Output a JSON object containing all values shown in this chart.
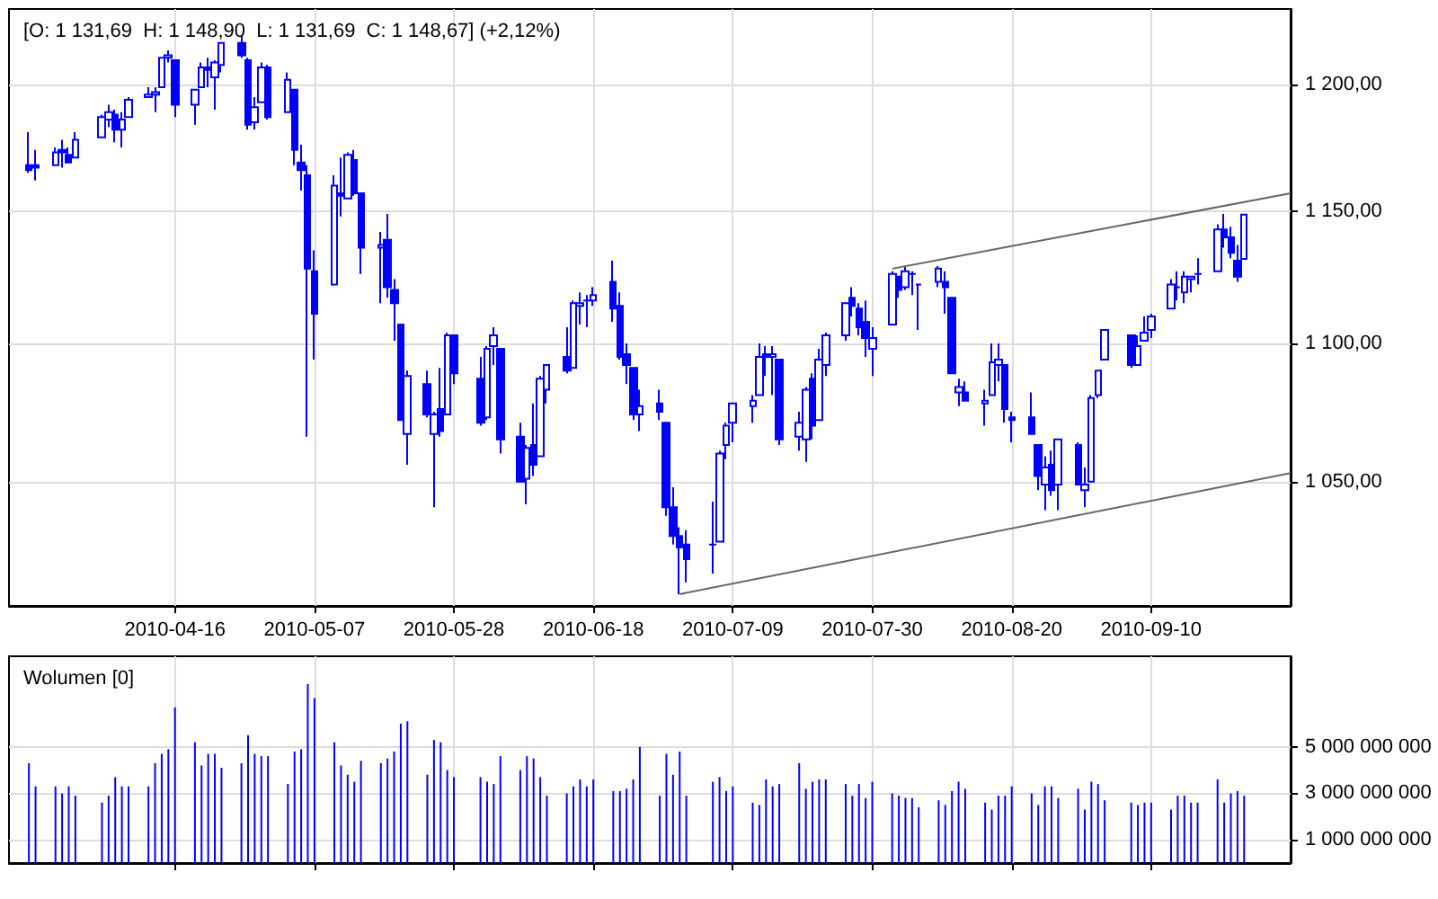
{
  "chart_data": [
    {
      "type": "candlestick",
      "title": "[O: 1 131,69  H: 1 148,90  L: 1 131,69  C: 1 148,67] (+2,12%)",
      "xlim": [
        "2010-03-22",
        "2010-10-01"
      ],
      "xticks": [
        "2010-04-16",
        "2010-05-07",
        "2010-05-28",
        "2010-06-18",
        "2010-07-09",
        "2010-07-30",
        "2010-08-20",
        "2010-09-10"
      ],
      "ylim": [
        1007,
        1231
      ],
      "yticks": [
        {
          "value": 1050,
          "label": "1 050,00"
        },
        {
          "value": 1100,
          "label": "1 100,00"
        },
        {
          "value": 1150,
          "label": "1 150,00"
        },
        {
          "value": 1200,
          "label": "1 200,00"
        }
      ],
      "log": "y",
      "grid": true,
      "series": [
        {
          "color": "#0000ff",
          "x": [
            "2010-03-25",
            "2010-03-26",
            "2010-03-29",
            "2010-03-30",
            "2010-03-31",
            "2010-04-01",
            "2010-04-05",
            "2010-04-06",
            "2010-04-07",
            "2010-04-08",
            "2010-04-09",
            "2010-04-12",
            "2010-04-13",
            "2010-04-14",
            "2010-04-15",
            "2010-04-16",
            "2010-04-19",
            "2010-04-20",
            "2010-04-21",
            "2010-04-22",
            "2010-04-23",
            "2010-04-26",
            "2010-04-27",
            "2010-04-28",
            "2010-04-29",
            "2010-04-30",
            "2010-05-03",
            "2010-05-04",
            "2010-05-05",
            "2010-05-06",
            "2010-05-07",
            "2010-05-10",
            "2010-05-11",
            "2010-05-12",
            "2010-05-13",
            "2010-05-14",
            "2010-05-17",
            "2010-05-18",
            "2010-05-19",
            "2010-05-20",
            "2010-05-21",
            "2010-05-24",
            "2010-05-25",
            "2010-05-26",
            "2010-05-27",
            "2010-05-28",
            "2010-06-01",
            "2010-06-02",
            "2010-06-03",
            "2010-06-04",
            "2010-06-07",
            "2010-06-08",
            "2010-06-09",
            "2010-06-10",
            "2010-06-11",
            "2010-06-14",
            "2010-06-15",
            "2010-06-16",
            "2010-06-17",
            "2010-06-18",
            "2010-06-21",
            "2010-06-22",
            "2010-06-23",
            "2010-06-24",
            "2010-06-25",
            "2010-06-28",
            "2010-06-29",
            "2010-06-30",
            "2010-07-01",
            "2010-07-02",
            "2010-07-06",
            "2010-07-07",
            "2010-07-08",
            "2010-07-09",
            "2010-07-12",
            "2010-07-13",
            "2010-07-14",
            "2010-07-15",
            "2010-07-16",
            "2010-07-19",
            "2010-07-20",
            "2010-07-21",
            "2010-07-22",
            "2010-07-23",
            "2010-07-26",
            "2010-07-27",
            "2010-07-28",
            "2010-07-29",
            "2010-07-30",
            "2010-08-02",
            "2010-08-03",
            "2010-08-04",
            "2010-08-05",
            "2010-08-06",
            "2010-08-09",
            "2010-08-10",
            "2010-08-11",
            "2010-08-12",
            "2010-08-13",
            "2010-08-16",
            "2010-08-17",
            "2010-08-18",
            "2010-08-19",
            "2010-08-20",
            "2010-08-23",
            "2010-08-24",
            "2010-08-25",
            "2010-08-26",
            "2010-08-27",
            "2010-08-30",
            "2010-08-31",
            "2010-09-01",
            "2010-09-02",
            "2010-09-03",
            "2010-09-07",
            "2010-09-08",
            "2010-09-09",
            "2010-09-10",
            "2010-09-13",
            "2010-09-14",
            "2010-09-15",
            "2010-09-16",
            "2010-09-17",
            "2010-09-20",
            "2010-09-21",
            "2010-09-22",
            "2010-09-23",
            "2010-09-24"
          ],
          "ohlc": [
            [
              1168,
              1181,
              1165,
              1166
            ],
            [
              1168,
              1174,
              1162,
              1167
            ],
            [
              1168,
              1175,
              1168,
              1173
            ],
            [
              1174,
              1178,
              1167,
              1173
            ],
            [
              1172,
              1175,
              1169,
              1169
            ],
            [
              1171,
              1181,
              1171,
              1178
            ],
            [
              1179,
              1188,
              1179,
              1187
            ],
            [
              1186,
              1192,
              1183,
              1189
            ],
            [
              1188,
              1190,
              1177,
              1182
            ],
            [
              1182,
              1189,
              1175,
              1186
            ],
            [
              1187,
              1195,
              1187,
              1194
            ],
            [
              1195,
              1199,
              1195,
              1196
            ],
            [
              1196,
              1199,
              1189,
              1197
            ],
            [
              1199,
              1211,
              1199,
              1211
            ],
            [
              1211,
              1214,
              1209,
              1212
            ],
            [
              1210,
              1210,
              1187,
              1192
            ],
            [
              1192,
              1198,
              1184,
              1198
            ],
            [
              1199,
              1209,
              1199,
              1207
            ],
            [
              1207,
              1211,
              1199,
              1206
            ],
            [
              1203,
              1210,
              1190,
              1209
            ],
            [
              1208,
              1217,
              1205,
              1217
            ],
            [
              1217,
              1220,
              1211,
              1212
            ],
            [
              1210,
              1211,
              1182,
              1184
            ],
            [
              1185,
              1195,
              1182,
              1191
            ],
            [
              1193,
              1209,
              1193,
              1207
            ],
            [
              1207,
              1208,
              1186,
              1187
            ],
            [
              1189,
              1205,
              1189,
              1202
            ],
            [
              1198,
              1198,
              1168,
              1174
            ],
            [
              1169,
              1176,
              1158,
              1166
            ],
            [
              1164,
              1168,
              1066,
              1128
            ],
            [
              1127,
              1135,
              1094,
              1111
            ],
            [
              1122,
              1164,
              1122,
              1160
            ],
            [
              1157,
              1171,
              1148,
              1156
            ],
            [
              1155,
              1173,
              1155,
              1172
            ],
            [
              1170,
              1174,
              1156,
              1157
            ],
            [
              1157,
              1157,
              1126,
              1136
            ],
            [
              1136,
              1142,
              1115,
              1137
            ],
            [
              1139,
              1149,
              1117,
              1121
            ],
            [
              1120,
              1124,
              1101,
              1115
            ],
            [
              1107,
              1107,
              1072,
              1072
            ],
            [
              1067,
              1090,
              1056,
              1088
            ],
            [
              1085,
              1090,
              1073,
              1074
            ],
            [
              1067,
              1075,
              1041,
              1074
            ],
            [
              1076,
              1091,
              1066,
              1068
            ],
            [
              1074,
              1104,
              1074,
              1103
            ],
            [
              1103,
              1103,
              1085,
              1089
            ],
            [
              1087,
              1095,
              1070,
              1071
            ],
            [
              1073,
              1099,
              1072,
              1098
            ],
            [
              1099,
              1106,
              1092,
              1103
            ],
            [
              1098,
              1098,
              1060,
              1065
            ],
            [
              1066,
              1071,
              1050,
              1050
            ],
            [
              1051,
              1063,
              1042,
              1062
            ],
            [
              1063,
              1078,
              1052,
              1056
            ],
            [
              1059,
              1088,
              1059,
              1087
            ],
            [
              1083,
              1092,
              1078,
              1092
            ],
            [
              1095,
              1106,
              1089,
              1090
            ],
            [
              1091,
              1116,
              1091,
              1115
            ],
            [
              1114,
              1119,
              1107,
              1115
            ],
            [
              1116,
              1118,
              1106,
              1116
            ],
            [
              1116,
              1121,
              1114,
              1118
            ],
            [
              1123,
              1131,
              1108,
              1113
            ],
            [
              1114,
              1119,
              1094,
              1095
            ],
            [
              1096,
              1100,
              1085,
              1092
            ],
            [
              1091,
              1091,
              1072,
              1074
            ],
            [
              1074,
              1083,
              1068,
              1077
            ],
            [
              1078,
              1083,
              1072,
              1075
            ],
            [
              1071,
              1071,
              1038,
              1041
            ],
            [
              1041,
              1048,
              1028,
              1031
            ],
            [
              1031,
              1034,
              1011,
              1027
            ],
            [
              1028,
              1033,
              1015,
              1023
            ],
            [
              1028,
              1043,
              1018,
              1028
            ],
            [
              1029,
              1061,
              1029,
              1060
            ],
            [
              1063,
              1071,
              1058,
              1070
            ],
            [
              1071,
              1078,
              1064,
              1078
            ],
            [
              1077,
              1081,
              1071,
              1079
            ],
            [
              1081,
              1100,
              1081,
              1095
            ],
            [
              1096,
              1099,
              1088,
              1095
            ],
            [
              1095,
              1099,
              1081,
              1096
            ],
            [
              1094,
              1094,
              1063,
              1065
            ],
            [
              1066,
              1075,
              1061,
              1071
            ],
            [
              1065,
              1084,
              1057,
              1083
            ],
            [
              1087,
              1089,
              1065,
              1070
            ],
            [
              1072,
              1098,
              1072,
              1094
            ],
            [
              1092,
              1104,
              1088,
              1103
            ],
            [
              1103,
              1115,
              1101,
              1115
            ],
            [
              1117,
              1121,
              1110,
              1114
            ],
            [
              1113,
              1115,
              1103,
              1106
            ],
            [
              1108,
              1116,
              1095,
              1102
            ],
            [
              1098,
              1106,
              1088,
              1102
            ],
            [
              1107,
              1127,
              1107,
              1126
            ],
            [
              1125,
              1125,
              1117,
              1120
            ],
            [
              1121,
              1129,
              1120,
              1127
            ],
            [
              1126,
              1127,
              1118,
              1126
            ],
            [
              1122,
              1122,
              1105,
              1122
            ],
            [
              1123,
              1129,
              1121,
              1128
            ],
            [
              1123,
              1127,
              1111,
              1121
            ],
            [
              1117,
              1117,
              1089,
              1089
            ],
            [
              1082,
              1087,
              1077,
              1084
            ],
            [
              1082,
              1086,
              1079,
              1079
            ],
            [
              1078,
              1083,
              1070,
              1079
            ],
            [
              1081,
              1100,
              1081,
              1093
            ],
            [
              1092,
              1100,
              1086,
              1094
            ],
            [
              1092,
              1092,
              1071,
              1076
            ],
            [
              1073,
              1075,
              1064,
              1072
            ],
            [
              1073,
              1082,
              1067,
              1067
            ],
            [
              1063,
              1063,
              1047,
              1052
            ],
            [
              1049,
              1059,
              1040,
              1055
            ],
            [
              1056,
              1061,
              1045,
              1047
            ],
            [
              1049,
              1065,
              1040,
              1065
            ],
            [
              1063,
              1064,
              1049,
              1049
            ],
            [
              1047,
              1055,
              1041,
              1049
            ],
            [
              1050,
              1081,
              1050,
              1080
            ],
            [
              1081,
              1090,
              1080,
              1090
            ],
            [
              1094,
              1105,
              1094,
              1105
            ],
            [
              1103,
              1103,
              1091,
              1092
            ],
            [
              1092,
              1103,
              1092,
              1099
            ],
            [
              1101,
              1110,
              1101,
              1104
            ],
            [
              1105,
              1111,
              1102,
              1110
            ],
            [
              1113,
              1124,
              1113,
              1122
            ],
            [
              1121,
              1127,
              1116,
              1121
            ],
            [
              1119,
              1127,
              1115,
              1125
            ],
            [
              1124,
              1125,
              1119,
              1125
            ],
            [
              1126,
              1132,
              1122,
              1126
            ],
            [
              1127,
              1145,
              1127,
              1143
            ],
            [
              1143,
              1149,
              1136,
              1140
            ],
            [
              1140,
              1144,
              1132,
              1134
            ],
            [
              1131,
              1137,
              1123,
              1125
            ],
            [
              1131.69,
              1148.9,
              1131.69,
              1148.67
            ]
          ]
        },
        {
          "type": "line",
          "color": "#666666",
          "x": [
            "2010-07-01",
            "2010-10-01"
          ],
          "values": [
            1011,
            1053
          ]
        },
        {
          "type": "line",
          "color": "#666666",
          "x": [
            "2010-08-02",
            "2010-10-01"
          ],
          "values": [
            1128,
            1157
          ]
        }
      ]
    },
    {
      "type": "bar",
      "title": "Wolumen [0]",
      "xlim": [
        "2010-03-22",
        "2010-10-01"
      ],
      "xticks": [
        {
          "value": "2010-04-16",
          "label": null
        },
        {
          "value": "2010-05-07",
          "label": null
        },
        {
          "value": "2010-05-28",
          "label": null
        },
        {
          "value": "2010-06-18",
          "label": null
        },
        {
          "value": "2010-07-09",
          "label": null
        },
        {
          "value": "2010-07-30",
          "label": null
        },
        {
          "value": "2010-08-20",
          "label": null
        },
        {
          "value": "2010-09-10",
          "label": null
        }
      ],
      "ylim": [
        0,
        8900000000
      ],
      "yticks": [
        {
          "value": 1000000000,
          "label": "1 000 000 000"
        },
        {
          "value": 3000000000,
          "label": "3 000 000 000"
        },
        {
          "value": 5000000000,
          "label": "5 000 000 000"
        }
      ],
      "grid": true,
      "tick_labels": "y",
      "series": [
        {
          "color": "#0000ff",
          "x": [
            "2010-03-25",
            "2010-03-26",
            "2010-03-29",
            "2010-03-30",
            "2010-03-31",
            "2010-04-01",
            "2010-04-05",
            "2010-04-06",
            "2010-04-07",
            "2010-04-08",
            "2010-04-09",
            "2010-04-12",
            "2010-04-13",
            "2010-04-14",
            "2010-04-15",
            "2010-04-16",
            "2010-04-19",
            "2010-04-20",
            "2010-04-21",
            "2010-04-22",
            "2010-04-23",
            "2010-04-26",
            "2010-04-27",
            "2010-04-28",
            "2010-04-29",
            "2010-04-30",
            "2010-05-03",
            "2010-05-04",
            "2010-05-05",
            "2010-05-06",
            "2010-05-07",
            "2010-05-10",
            "2010-05-11",
            "2010-05-12",
            "2010-05-13",
            "2010-05-14",
            "2010-05-17",
            "2010-05-18",
            "2010-05-19",
            "2010-05-20",
            "2010-05-21",
            "2010-05-24",
            "2010-05-25",
            "2010-05-26",
            "2010-05-27",
            "2010-05-28",
            "2010-06-01",
            "2010-06-02",
            "2010-06-03",
            "2010-06-04",
            "2010-06-07",
            "2010-06-08",
            "2010-06-09",
            "2010-06-10",
            "2010-06-11",
            "2010-06-14",
            "2010-06-15",
            "2010-06-16",
            "2010-06-17",
            "2010-06-18",
            "2010-06-21",
            "2010-06-22",
            "2010-06-23",
            "2010-06-24",
            "2010-06-25",
            "2010-06-28",
            "2010-06-29",
            "2010-06-30",
            "2010-07-01",
            "2010-07-02",
            "2010-07-06",
            "2010-07-07",
            "2010-07-08",
            "2010-07-09",
            "2010-07-12",
            "2010-07-13",
            "2010-07-14",
            "2010-07-15",
            "2010-07-16",
            "2010-07-19",
            "2010-07-20",
            "2010-07-21",
            "2010-07-22",
            "2010-07-23",
            "2010-07-26",
            "2010-07-27",
            "2010-07-28",
            "2010-07-29",
            "2010-07-30",
            "2010-08-02",
            "2010-08-03",
            "2010-08-04",
            "2010-08-05",
            "2010-08-06",
            "2010-08-09",
            "2010-08-10",
            "2010-08-11",
            "2010-08-12",
            "2010-08-13",
            "2010-08-16",
            "2010-08-17",
            "2010-08-18",
            "2010-08-19",
            "2010-08-20",
            "2010-08-23",
            "2010-08-24",
            "2010-08-25",
            "2010-08-26",
            "2010-08-27",
            "2010-08-30",
            "2010-08-31",
            "2010-09-01",
            "2010-09-02",
            "2010-09-03",
            "2010-09-07",
            "2010-09-08",
            "2010-09-09",
            "2010-09-10",
            "2010-09-13",
            "2010-09-14",
            "2010-09-15",
            "2010-09-16",
            "2010-09-17",
            "2010-09-20",
            "2010-09-21",
            "2010-09-22",
            "2010-09-23",
            "2010-09-24"
          ],
          "values": [
            4300000000,
            3300000000,
            3300000000,
            3000000000,
            3300000000,
            2900000000,
            2600000000,
            2900000000,
            3700000000,
            3300000000,
            3300000000,
            3300000000,
            4300000000,
            4700000000,
            4900000000,
            6700000000,
            5200000000,
            4200000000,
            4700000000,
            4700000000,
            4100000000,
            4300000000,
            5500000000,
            4700000000,
            4600000000,
            4600000000,
            3400000000,
            4800000000,
            4900000000,
            7700000000,
            7100000000,
            5200000000,
            4200000000,
            3800000000,
            3500000000,
            4400000000,
            4300000000,
            4500000000,
            4800000000,
            6000000000,
            6100000000,
            3800000000,
            5300000000,
            5200000000,
            4000000000,
            3700000000,
            3700000000,
            3500000000,
            3400000000,
            4600000000,
            4000000000,
            4600000000,
            4500000000,
            3700000000,
            2900000000,
            3000000000,
            3300000000,
            3600000000,
            3300000000,
            3600000000,
            3100000000,
            3100000000,
            3200000000,
            3600000000,
            5000000000,
            2900000000,
            4700000000,
            3800000000,
            4800000000,
            2900000000,
            3500000000,
            3700000000,
            3100000000,
            3300000000,
            2600000000,
            2500000000,
            3600000000,
            3300000000,
            3400000000,
            4300000000,
            3200000000,
            3500000000,
            3600000000,
            3600000000,
            3400000000,
            2900000000,
            3400000000,
            2800000000,
            3500000000,
            3000000000,
            2900000000,
            2800000000,
            2800000000,
            2400000000,
            2700000000,
            2500000000,
            3100000000,
            3500000000,
            3200000000,
            2600000000,
            2300000000,
            2900000000,
            2900000000,
            3300000000,
            3000000000,
            2500000000,
            3300000000,
            3300000000,
            2800000000,
            3200000000,
            2300000000,
            3500000000,
            3400000000,
            2700000000,
            2600000000,
            2500000000,
            2600000000,
            2600000000,
            2300000000,
            2900000000,
            2900000000,
            2600000000,
            2600000000,
            3600000000,
            2600000000,
            3000000000,
            3100000000,
            2900000000
          ]
        }
      ]
    }
  ]
}
